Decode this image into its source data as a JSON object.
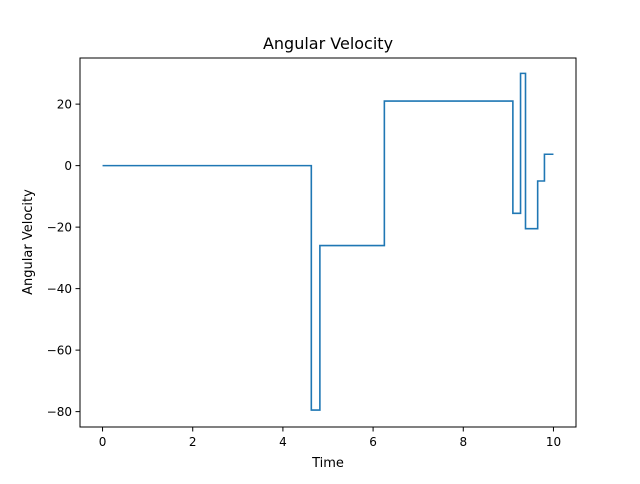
{
  "chart_data": {
    "type": "line",
    "title": "Angular Velocity",
    "xlabel": "Time",
    "ylabel": "Angular Velocity",
    "xlim": [
      -0.5,
      10.5
    ],
    "ylim": [
      -85,
      35
    ],
    "x_ticks": [
      0,
      2,
      4,
      6,
      8,
      10
    ],
    "y_ticks": [
      20,
      0,
      -20,
      -40,
      -60,
      -80
    ],
    "x_tick_labels": [
      "0",
      "2",
      "4",
      "6",
      "8",
      "10"
    ],
    "y_tick_labels": [
      "20",
      "0",
      "−20",
      "−40",
      "−60",
      "−80"
    ],
    "grid": false,
    "step": "post",
    "line_color": "#1f77b4",
    "series": [
      {
        "x": [
          0,
          4.63,
          4.82,
          6.25,
          9.1,
          9.27,
          9.38,
          9.65,
          9.8,
          10.0
        ],
        "y": [
          0,
          -79.5,
          -26,
          21,
          -15.5,
          30,
          -20.5,
          -5,
          3.7,
          3.7
        ]
      }
    ]
  }
}
